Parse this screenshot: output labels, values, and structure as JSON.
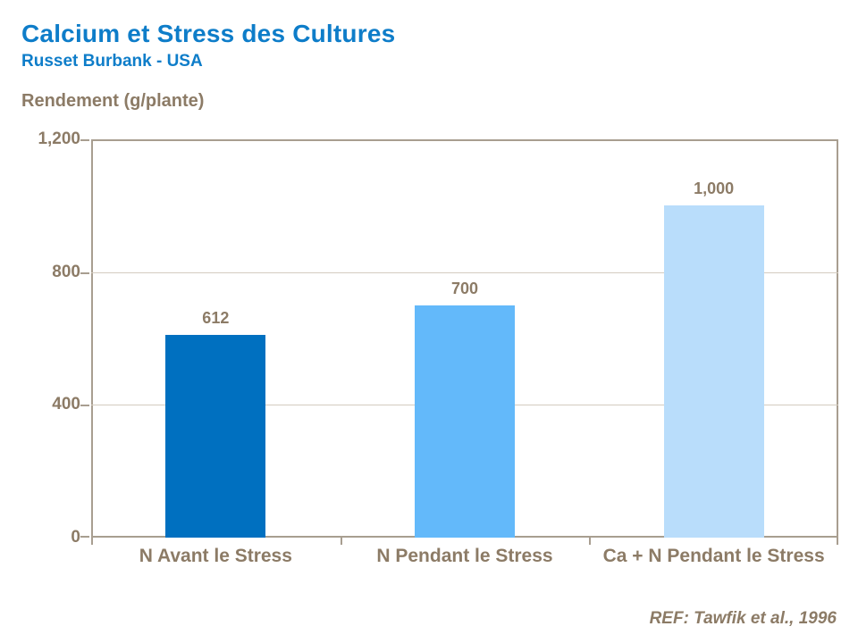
{
  "header": {
    "title": "Calcium et Stress des Cultures",
    "subtitle": "Russet Burbank - USA"
  },
  "chart": {
    "axis_title": "Rendement (g/plante)",
    "ref_note": "REF: Tawfik et al., 1996"
  },
  "colors": {
    "title_blue": "#0e7dc9",
    "text_brown": "#8c7b66",
    "frame": "#a89e90",
    "gridline": "#d4ccc0",
    "bar_colors": [
      "#0070c0",
      "#63b9fa",
      "#b9ddfb"
    ]
  },
  "chart_data": {
    "type": "bar",
    "title": "Calcium et Stress des Cultures",
    "subtitle": "Russet Burbank - USA",
    "ylabel": "Rendement (g/plante)",
    "xlabel": "",
    "categories": [
      "N Avant le Stress",
      "N Pendant le Stress",
      "Ca + N Pendant le Stress"
    ],
    "values": [
      612,
      700,
      1000
    ],
    "value_labels": [
      "612",
      "700",
      "1,000"
    ],
    "ylim": [
      0,
      1200
    ],
    "yticks": [
      0,
      400,
      800,
      1200
    ],
    "ytick_labels": [
      "0",
      "400",
      "800",
      "1,200"
    ],
    "gridlines_at": [
      400,
      800
    ],
    "grid": true,
    "legend_position": "none",
    "annotation": "REF: Tawfik et al., 1996"
  }
}
